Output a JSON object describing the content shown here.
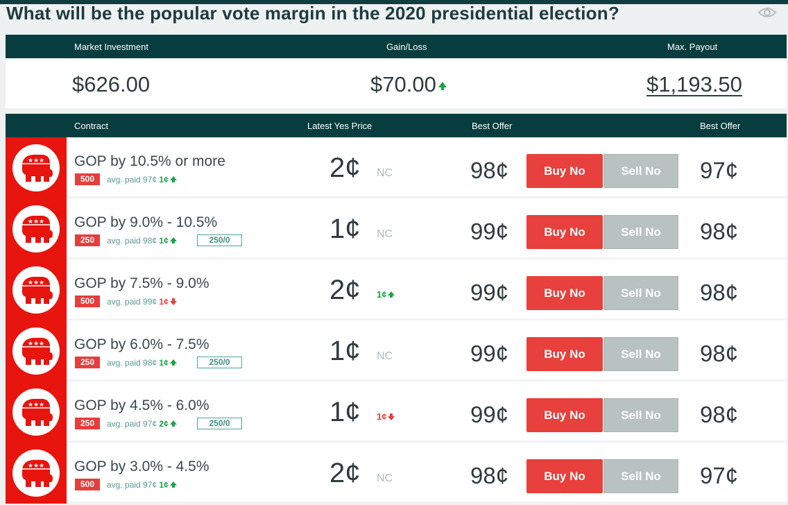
{
  "page": {
    "title": "What will be the popular vote margin in the 2020 presidential election?"
  },
  "summary": {
    "headers": {
      "investment": "Market Investment",
      "gainloss": "Gain/Loss",
      "payout": "Max. Payout"
    },
    "investment": "$626.00",
    "gainloss": "$70.00",
    "gainloss_direction": "up",
    "payout": "$1,193.50"
  },
  "table": {
    "headers": {
      "contract": "Contract",
      "latest": "Latest Yes Price",
      "offer_buy": "Best Offer",
      "offer_sell": "Best Offer"
    },
    "rows": [
      {
        "name": "GOP by 10.5% or more",
        "qty": "500",
        "avg": "avg. paid 97¢",
        "avg_chg": "1¢",
        "avg_dir": "up",
        "shares": "",
        "price": "2¢",
        "price_chg": "NC",
        "price_dir": "nc",
        "best_offer_no": "98¢",
        "buy": "Buy No",
        "sell": "Sell No",
        "best_offer_sell": "97¢"
      },
      {
        "name": "GOP by 9.0% - 10.5%",
        "qty": "250",
        "avg": "avg. paid 98¢",
        "avg_chg": "1¢",
        "avg_dir": "up",
        "shares": "250/0",
        "price": "1¢",
        "price_chg": "NC",
        "price_dir": "nc",
        "best_offer_no": "99¢",
        "buy": "Buy No",
        "sell": "Sell No",
        "best_offer_sell": "98¢"
      },
      {
        "name": "GOP by 7.5% - 9.0%",
        "qty": "500",
        "avg": "avg. paid 99¢",
        "avg_chg": "1¢",
        "avg_dir": "down",
        "shares": "",
        "price": "2¢",
        "price_chg": "1¢",
        "price_dir": "up",
        "best_offer_no": "99¢",
        "buy": "Buy No",
        "sell": "Sell No",
        "best_offer_sell": "98¢"
      },
      {
        "name": "GOP by 6.0% - 7.5%",
        "qty": "250",
        "avg": "avg. paid 98¢",
        "avg_chg": "1¢",
        "avg_dir": "up",
        "shares": "250/0",
        "price": "1¢",
        "price_chg": "NC",
        "price_dir": "nc",
        "best_offer_no": "99¢",
        "buy": "Buy No",
        "sell": "Sell No",
        "best_offer_sell": "98¢"
      },
      {
        "name": "GOP by 4.5% - 6.0%",
        "qty": "250",
        "avg": "avg. paid 97¢",
        "avg_chg": "2¢",
        "avg_dir": "up",
        "shares": "250/0",
        "price": "1¢",
        "price_chg": "1¢",
        "price_dir": "down",
        "best_offer_no": "99¢",
        "buy": "Buy No",
        "sell": "Sell No",
        "best_offer_sell": "98¢"
      },
      {
        "name": "GOP by 3.0% - 4.5%",
        "qty": "500",
        "avg": "avg. paid 97¢",
        "avg_chg": "1¢",
        "avg_dir": "up",
        "shares": "",
        "price": "2¢",
        "price_chg": "NC",
        "price_dir": "nc",
        "best_offer_no": "98¢",
        "buy": "Buy No",
        "sell": "Sell No",
        "best_offer_sell": "97¢"
      }
    ]
  },
  "colors": {
    "header_bg": "#083d3f",
    "gop_red": "#e8140e",
    "buy_red": "#e8403c",
    "sell_gray": "#b7c2c1",
    "up_green": "#1aa34a",
    "down_red": "#e53e3b"
  },
  "icons": {
    "watch": "eye-icon",
    "party": "republican-elephant-icon"
  }
}
